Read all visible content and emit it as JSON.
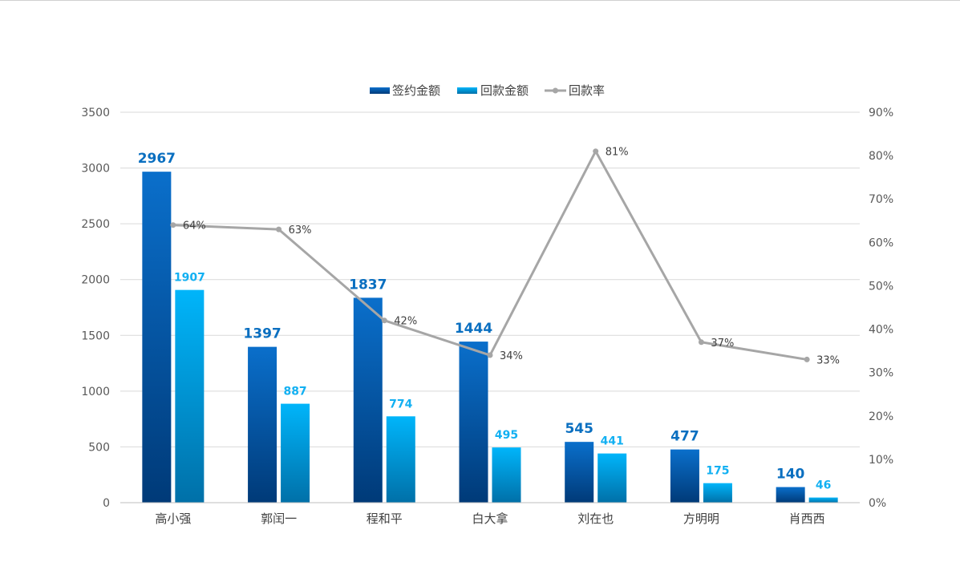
{
  "chart_data": {
    "type": "bar",
    "categories": [
      "高小强",
      "郭闰一",
      "程和平",
      "白大拿",
      "刘在也",
      "方明明",
      "肖西西"
    ],
    "series": [
      {
        "name": "签约金额",
        "type": "bar",
        "axis": "left",
        "values": [
          2967,
          1397,
          1837,
          1444,
          545,
          477,
          140
        ]
      },
      {
        "name": "回款金额",
        "type": "bar",
        "axis": "left",
        "values": [
          1907,
          887,
          774,
          495,
          441,
          175,
          46
        ]
      },
      {
        "name": "回款率",
        "type": "line",
        "axis": "right",
        "values": [
          0.64,
          0.63,
          0.42,
          0.34,
          0.81,
          0.37,
          0.33
        ],
        "labels": [
          "64%",
          "63%",
          "42%",
          "34%",
          "81%",
          "37%",
          "33%"
        ]
      }
    ],
    "y_left": {
      "min": 0,
      "max": 3500,
      "ticks": [
        "0",
        "500",
        "1000",
        "1500",
        "2000",
        "2500",
        "3000",
        "3500"
      ]
    },
    "y_right": {
      "min": 0,
      "max": 0.9,
      "ticks": [
        "0%",
        "10%",
        "20%",
        "30%",
        "40%",
        "50%",
        "60%",
        "70%",
        "80%",
        "90%"
      ]
    },
    "grid": true,
    "legend_position": "top-center",
    "colors": {
      "sign_top": "#0A6FCB",
      "sign_bottom": "#003A78",
      "recv_top": "#00B5FA",
      "recv_bottom": "#0070A8",
      "rate_line": "#A6A6A6",
      "sign_label": "#0A6FC0",
      "recv_label": "#12B0F2",
      "grid": "#D9D9D9"
    }
  }
}
